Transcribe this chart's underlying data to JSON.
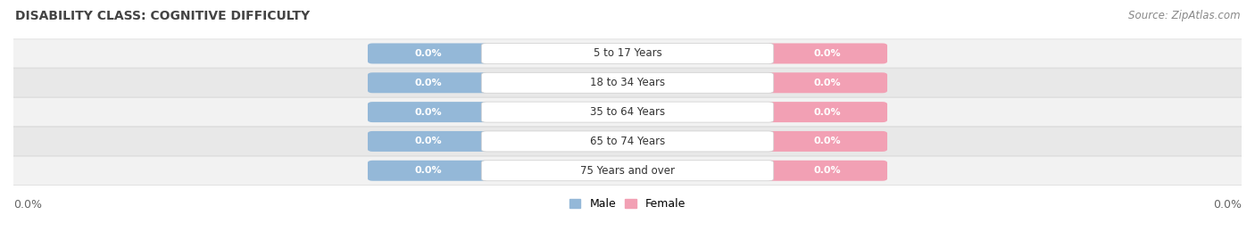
{
  "title": "DISABILITY CLASS: COGNITIVE DIFFICULTY",
  "source": "Source: ZipAtlas.com",
  "categories": [
    "5 to 17 Years",
    "18 to 34 Years",
    "35 to 64 Years",
    "65 to 74 Years",
    "75 Years and over"
  ],
  "male_values": [
    0.0,
    0.0,
    0.0,
    0.0,
    0.0
  ],
  "female_values": [
    0.0,
    0.0,
    0.0,
    0.0,
    0.0
  ],
  "male_color": "#94b8d8",
  "female_color": "#f2a0b4",
  "bar_bg_color_light": "#f2f2f2",
  "bar_bg_color_dark": "#e8e8e8",
  "bar_border_color": "#d8d8d8",
  "x_left_label": "0.0%",
  "x_right_label": "0.0%",
  "title_fontsize": 10,
  "source_fontsize": 8.5,
  "bar_label_fontsize": 8,
  "category_fontsize": 8.5,
  "axis_label_fontsize": 9
}
